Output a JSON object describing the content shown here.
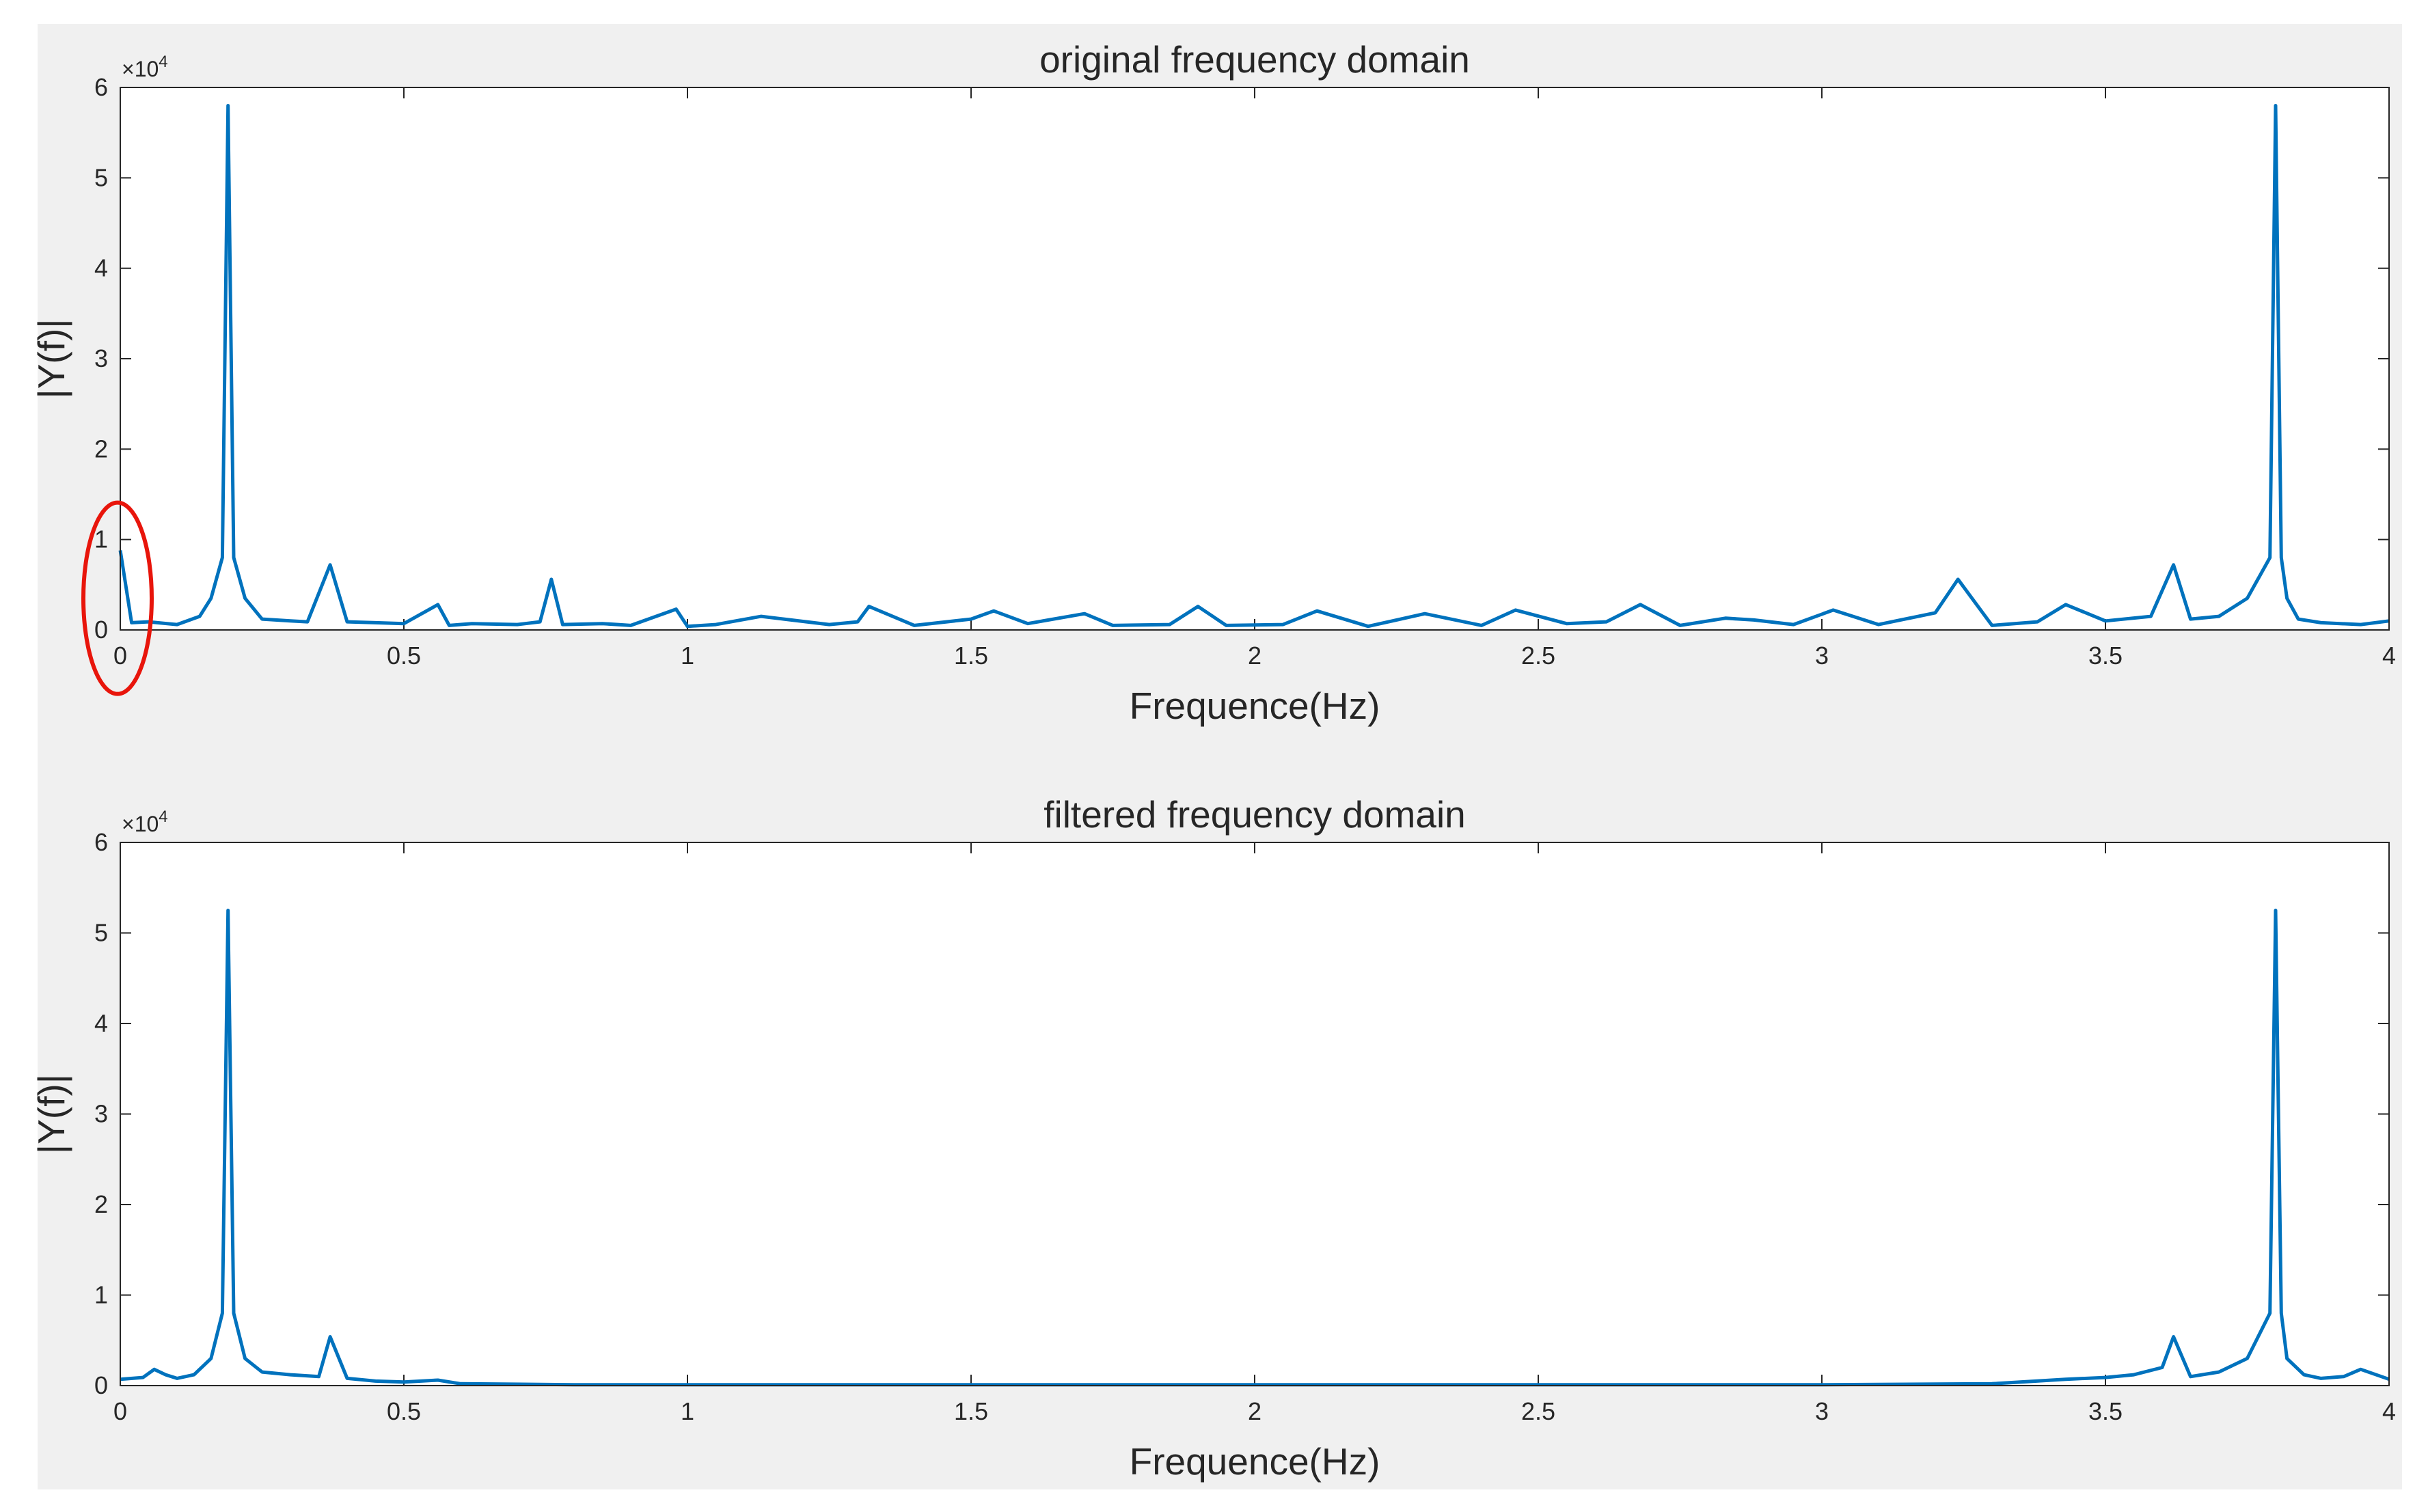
{
  "figure": {
    "background": "#f0f0f0",
    "axes_background": "#ffffff",
    "line_color": "#0072bd",
    "annotation_color": "#e8150b"
  },
  "chart_data": [
    {
      "type": "line",
      "title": "original frequency domain",
      "xlabel": "Frequence(Hz)",
      "ylabel": "|Y(f)|",
      "xlim": [
        0,
        4
      ],
      "ylim": [
        0,
        60000
      ],
      "y_exponent_label": "×10",
      "y_exponent_power": "4",
      "xticks": [
        "0",
        "0.5",
        "1",
        "1.5",
        "2",
        "2.5",
        "3",
        "3.5",
        "4"
      ],
      "yticks": [
        "0",
        "1",
        "2",
        "3",
        "4",
        "5",
        "6"
      ],
      "grid": false,
      "annotation": {
        "shape": "ellipse",
        "color": "#e8150b",
        "marks": "DC component near 0 Hz"
      },
      "series": [
        {
          "color": "#0072bd",
          "x": [
            0,
            0.02,
            0.05,
            0.1,
            0.14,
            0.16,
            0.18,
            0.19,
            0.2,
            0.22,
            0.25,
            0.3,
            0.33,
            0.37,
            0.4,
            0.45,
            0.5,
            0.56,
            0.58,
            0.62,
            0.7,
            0.74,
            0.76,
            0.78,
            0.85,
            0.9,
            0.98,
            1.0,
            1.05,
            1.13,
            1.17,
            1.25,
            1.3,
            1.32,
            1.4,
            1.5,
            1.54,
            1.6,
            1.7,
            1.75,
            1.85,
            1.9,
            1.95,
            2.05,
            2.11,
            2.2,
            2.3,
            2.4,
            2.46,
            2.55,
            2.62,
            2.68,
            2.75,
            2.83,
            2.88,
            2.95,
            3.02,
            3.1,
            3.2,
            3.24,
            3.3,
            3.38,
            3.43,
            3.5,
            3.58,
            3.62,
            3.65,
            3.7,
            3.75,
            3.79,
            3.8,
            3.81,
            3.82,
            3.84,
            3.88,
            3.95,
            4.0
          ],
          "y": [
            8800,
            800,
            900,
            600,
            1500,
            3500,
            8000,
            58000,
            8000,
            3500,
            1200,
            1000,
            900,
            7200,
            900,
            800,
            700,
            2800,
            500,
            700,
            600,
            900,
            5600,
            600,
            700,
            500,
            2300,
            400,
            600,
            1500,
            1200,
            600,
            900,
            2600,
            500,
            1200,
            2100,
            700,
            1800,
            500,
            600,
            2600,
            500,
            600,
            2100,
            400,
            1800,
            500,
            2200,
            700,
            900,
            2800,
            500,
            1300,
            1100,
            600,
            2200,
            600,
            1900,
            5600,
            500,
            900,
            2800,
            1000,
            1500,
            7200,
            1200,
            1500,
            3500,
            8000,
            58000,
            8000,
            3500,
            1200,
            800,
            600,
            1000
          ]
        }
      ]
    },
    {
      "type": "line",
      "title": "filtered frequency domain",
      "xlabel": "Frequence(Hz)",
      "ylabel": "|Y(f)|",
      "xlim": [
        0,
        4
      ],
      "ylim": [
        0,
        60000
      ],
      "y_exponent_label": "×10",
      "y_exponent_power": "4",
      "xticks": [
        "0",
        "0.5",
        "1",
        "1.5",
        "2",
        "2.5",
        "3",
        "3.5",
        "4"
      ],
      "yticks": [
        "0",
        "1",
        "2",
        "3",
        "4",
        "5",
        "6"
      ],
      "grid": false,
      "series": [
        {
          "color": "#0072bd",
          "x": [
            0,
            0.04,
            0.06,
            0.08,
            0.1,
            0.13,
            0.16,
            0.18,
            0.19,
            0.2,
            0.22,
            0.25,
            0.3,
            0.35,
            0.37,
            0.4,
            0.45,
            0.5,
            0.56,
            0.6,
            0.8,
            1.0,
            2.0,
            3.0,
            3.3,
            3.43,
            3.5,
            3.55,
            3.6,
            3.62,
            3.65,
            3.7,
            3.75,
            3.79,
            3.8,
            3.81,
            3.82,
            3.85,
            3.88,
            3.92,
            3.95,
            4.0
          ],
          "y": [
            700,
            900,
            1800,
            1200,
            800,
            1200,
            3000,
            8000,
            52500,
            8000,
            3000,
            1500,
            1200,
            1000,
            5400,
            800,
            500,
            400,
            600,
            200,
            100,
            100,
            100,
            100,
            200,
            700,
            900,
            1200,
            2000,
            5400,
            1000,
            1500,
            3000,
            8000,
            52500,
            8000,
            3000,
            1200,
            800,
            1000,
            1800,
            700
          ]
        }
      ]
    }
  ]
}
